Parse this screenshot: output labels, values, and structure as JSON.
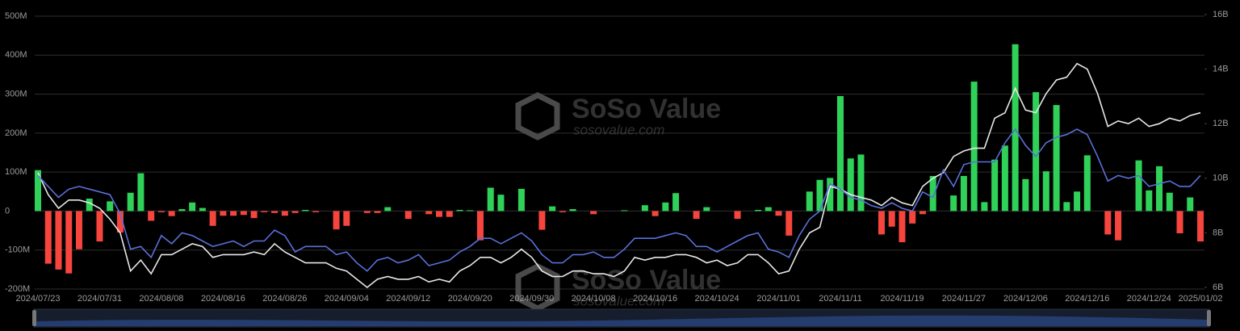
{
  "chart_data": {
    "type": "bar",
    "categories": [
      "2024/07/23",
      null,
      null,
      null,
      null,
      null,
      "2024/07/31",
      null,
      null,
      null,
      null,
      null,
      "2024/08/08",
      null,
      null,
      null,
      null,
      null,
      "2024/08/16",
      null,
      null,
      null,
      null,
      null,
      "2024/08/26",
      null,
      null,
      null,
      null,
      null,
      "2024/09/04",
      null,
      null,
      null,
      null,
      null,
      "2024/09/12",
      null,
      null,
      null,
      null,
      null,
      "2024/09/20",
      null,
      null,
      null,
      null,
      null,
      "2024/09/30",
      null,
      null,
      null,
      null,
      null,
      "2024/10/08",
      null,
      null,
      null,
      null,
      null,
      "2024/10/16",
      null,
      null,
      null,
      null,
      null,
      "2024/10/24",
      null,
      null,
      null,
      null,
      null,
      "2024/11/01",
      null,
      null,
      null,
      null,
      null,
      "2024/11/11",
      null,
      null,
      null,
      null,
      null,
      "2024/11/19",
      null,
      null,
      null,
      null,
      null,
      "2024/11/27",
      null,
      null,
      null,
      null,
      null,
      "2024/12/06",
      null,
      null,
      null,
      null,
      null,
      "2024/12/16",
      null,
      null,
      null,
      null,
      null,
      "2024/12/24",
      null,
      null,
      null,
      null,
      "2025/01/02"
    ],
    "series": [
      {
        "type": "bar",
        "colors": {
          "positive": "#2fd158",
          "negative": "#f6453d"
        },
        "values": [
          105,
          -135,
          -150,
          -160,
          -98,
          32,
          -78,
          25,
          -55,
          47,
          97,
          -25,
          -3,
          -13,
          5,
          22,
          8,
          -38,
          -12,
          -12,
          -10,
          -18,
          -3,
          -5,
          -12,
          -5,
          3,
          -3,
          0,
          -47,
          -38,
          0,
          -5,
          -5,
          10,
          0,
          -20,
          0,
          -8,
          -15,
          -15,
          3,
          2,
          -75,
          60,
          42,
          0,
          57,
          0,
          -48,
          12,
          -3,
          5,
          0,
          -8,
          0,
          0,
          2,
          0,
          15,
          -13,
          22,
          46,
          0,
          -20,
          10,
          0,
          0,
          -20,
          0,
          3,
          10,
          -12,
          -63,
          0,
          50,
          80,
          85,
          295,
          135,
          145,
          0,
          -60,
          -40,
          -80,
          -32,
          -8,
          90,
          0,
          40,
          90,
          332,
          23,
          132,
          168,
          428,
          82,
          305,
          102,
          272,
          23,
          50,
          143,
          0,
          -60,
          -75,
          0,
          130,
          53,
          115,
          47,
          -57,
          35,
          -78
        ]
      },
      {
        "type": "line",
        "axis": "y2",
        "color": "#e8e8e8",
        "values": [
          10.2,
          9.4,
          8.9,
          9.2,
          9.2,
          9.1,
          8.9,
          8.5,
          8.0,
          6.6,
          7.0,
          6.5,
          7.2,
          7.2,
          7.4,
          7.6,
          7.5,
          7.1,
          7.2,
          7.2,
          7.2,
          7.3,
          7.2,
          7.6,
          7.3,
          7.1,
          6.9,
          6.9,
          6.9,
          6.7,
          6.6,
          6.3,
          6.0,
          6.3,
          6.4,
          6.3,
          6.3,
          6.4,
          6.2,
          6.3,
          6.2,
          6.6,
          6.8,
          7.1,
          7.1,
          6.9,
          7.1,
          7.4,
          7.1,
          6.6,
          6.4,
          6.4,
          6.6,
          6.6,
          6.5,
          6.5,
          6.4,
          6.6,
          7.1,
          7.0,
          7.1,
          7.1,
          7.2,
          7.2,
          7.1,
          6.9,
          7.0,
          6.8,
          6.9,
          7.2,
          7.2,
          6.9,
          6.5,
          6.6,
          7.4,
          8.0,
          8.2,
          9.7,
          9.6,
          9.4,
          9.3,
          9.2,
          9.0,
          9.3,
          9.1,
          9.0,
          9.7,
          10.0,
          10.2,
          10.8,
          11.0,
          11.1,
          11.1,
          12.2,
          12.4,
          13.3,
          12.5,
          12.4,
          13.1,
          13.6,
          13.7,
          14.2,
          14.0,
          13.1,
          11.9,
          12.1,
          12.0,
          12.2,
          11.9,
          12.0,
          12.2,
          12.1,
          12.3,
          12.4
        ]
      },
      {
        "type": "line",
        "axis": "y2",
        "color": "#5a6fd8",
        "values": [
          10.1,
          9.7,
          9.3,
          9.6,
          9.7,
          9.6,
          9.5,
          9.4,
          8.7,
          7.4,
          7.5,
          7.1,
          7.9,
          7.6,
          8.0,
          7.9,
          7.7,
          7.5,
          7.6,
          7.7,
          7.5,
          7.7,
          7.7,
          8.1,
          7.9,
          7.3,
          7.5,
          7.5,
          7.5,
          7.2,
          7.3,
          6.9,
          6.6,
          7.0,
          7.1,
          6.9,
          7.0,
          7.2,
          6.8,
          6.9,
          7.0,
          7.3,
          7.5,
          7.8,
          7.8,
          7.6,
          7.8,
          8.0,
          7.7,
          7.2,
          6.9,
          6.9,
          7.2,
          7.2,
          7.3,
          7.1,
          7.1,
          7.4,
          7.8,
          7.8,
          7.8,
          7.9,
          8.0,
          7.9,
          7.5,
          7.5,
          7.3,
          7.5,
          7.7,
          7.9,
          8.0,
          7.4,
          7.3,
          7.1,
          7.9,
          8.5,
          8.8,
          9.8,
          9.6,
          9.3,
          9.2,
          9.0,
          8.9,
          9.1,
          8.9,
          8.8,
          9.5,
          9.3,
          10.3,
          9.7,
          10.5,
          10.6,
          10.6,
          10.6,
          11.3,
          11.8,
          11.2,
          10.8,
          11.3,
          11.5,
          11.6,
          11.8,
          11.6,
          10.8,
          9.9,
          10.1,
          10.0,
          10.1,
          9.7,
          9.8,
          9.9,
          9.7,
          9.7,
          10.1
        ]
      }
    ],
    "ylim": [
      -200,
      500
    ],
    "yticks": [
      {
        "value": -200,
        "label": "-200M"
      },
      {
        "value": -100,
        "label": "-100M"
      },
      0,
      {
        "value": 100,
        "label": "100M"
      },
      {
        "value": 200,
        "label": "200M"
      },
      {
        "value": 300,
        "label": "300M"
      },
      {
        "value": 400,
        "label": "400M"
      },
      {
        "value": 500,
        "label": "500M"
      }
    ],
    "y2lim": [
      6,
      16
    ],
    "y2ticks": [
      {
        "value": 6,
        "label": "6B"
      },
      {
        "value": 8,
        "label": "8B"
      },
      {
        "value": 10,
        "label": "10B"
      },
      {
        "value": 12,
        "label": "12B"
      },
      {
        "value": 14,
        "label": "14B"
      },
      {
        "value": 16,
        "label": "16B"
      }
    ],
    "grid": true,
    "watermark": [
      "SoSo Value",
      "sosovalue.com"
    ]
  }
}
